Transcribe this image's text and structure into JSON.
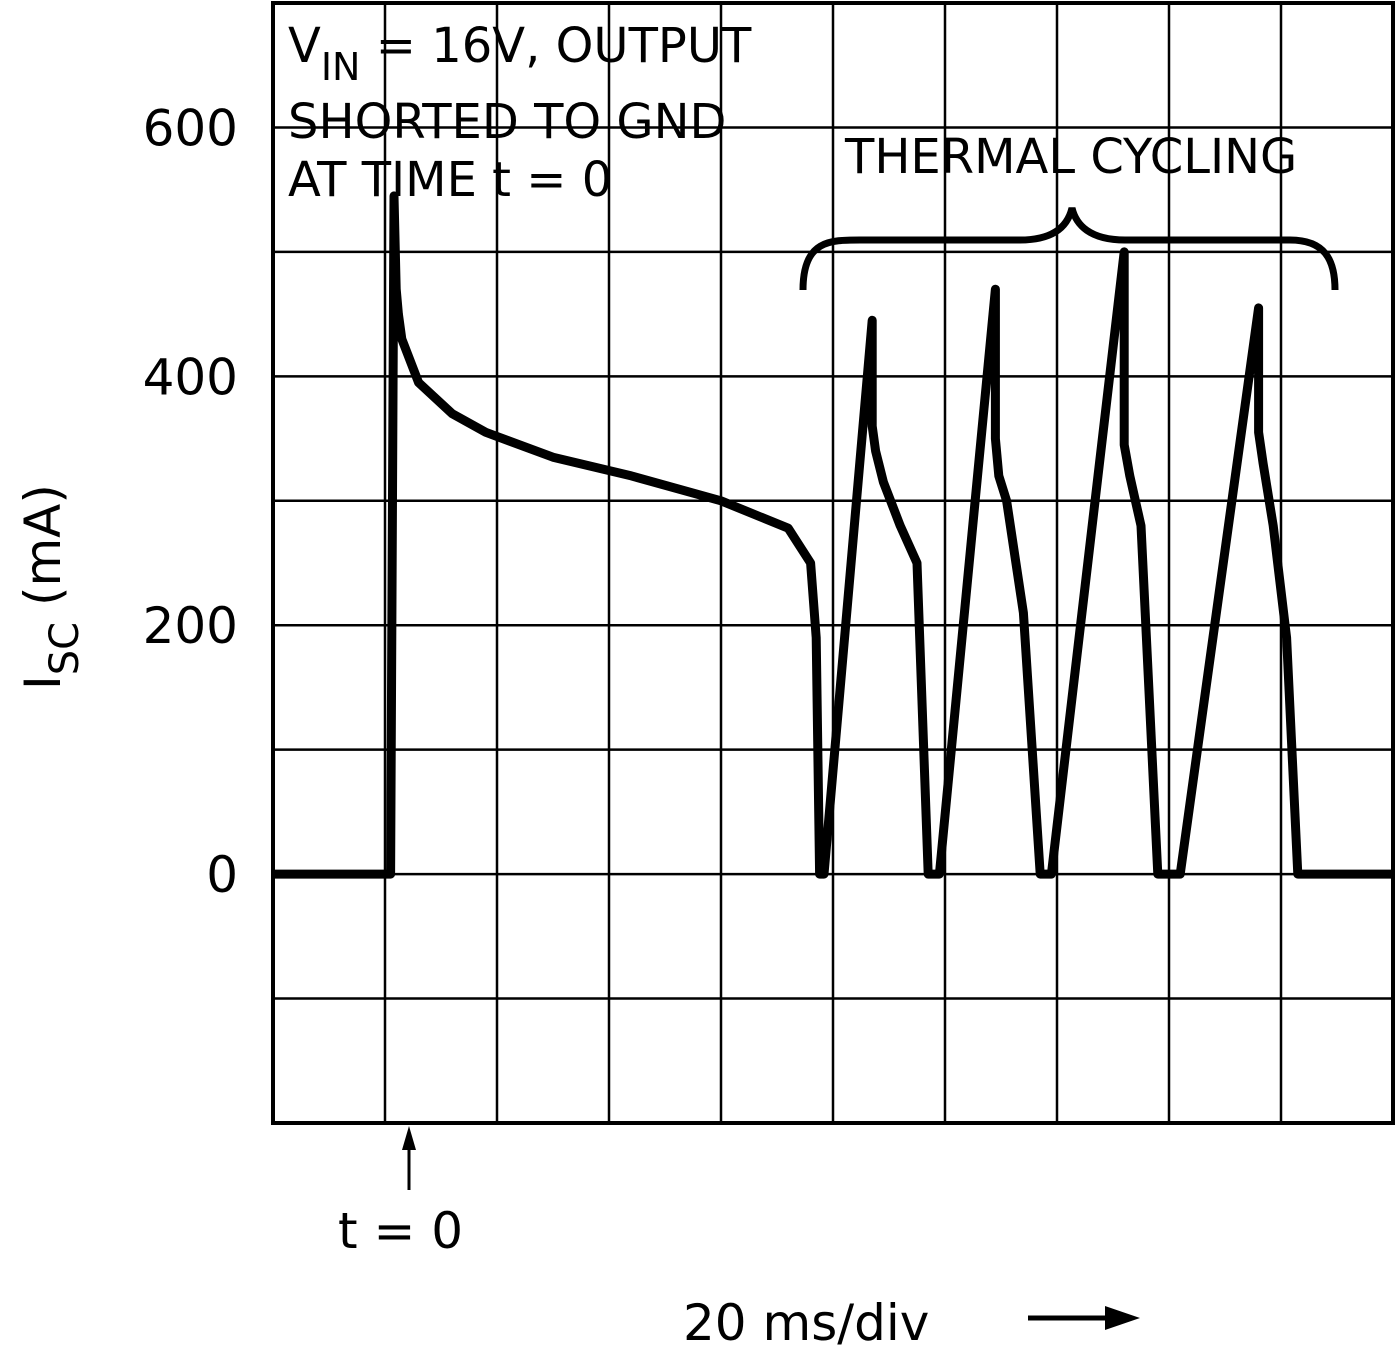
{
  "chart_data": {
    "type": "line",
    "annotation": {
      "line1_prefix": "V",
      "line1_sub": "IN",
      "line1_rest": " = 16V, OUTPUT",
      "line2": "SHORTED TO GND",
      "line3": "AT TIME t = 0"
    },
    "ylabel": {
      "main": "I",
      "sub": "SC",
      "unit": " (mA)"
    },
    "y_ticks": [
      "0",
      "200",
      "400",
      "600"
    ],
    "ylim": [
      -200,
      700
    ],
    "xlim_divisions": [
      0,
      10
    ],
    "x_unit_label": "20 ms/div",
    "t0_label": "t = 0",
    "thermal_cycling_label": "THERMAL CYCLING",
    "grid": true,
    "series": [
      {
        "x": [
          0,
          1.05,
          1.08,
          1.1,
          1.12,
          1.15,
          1.3,
          1.6,
          1.9,
          2.5,
          3.2,
          4.0,
          4.6,
          4.8,
          4.85,
          4.88,
          4.92,
          5.35,
          5.35,
          5.38,
          5.45,
          5.6,
          5.75,
          5.85,
          5.9,
          5.95,
          6.45,
          6.45,
          6.48,
          6.55,
          6.7,
          6.85,
          6.9,
          6.95,
          7.6,
          7.6,
          7.65,
          7.75,
          7.9,
          8.0,
          8.05,
          8.1,
          8.8,
          8.8,
          8.84,
          8.93,
          9.05,
          9.15,
          9.2,
          9.22,
          10.0
        ],
        "y": [
          0,
          0,
          545,
          470,
          450,
          430,
          395,
          370,
          355,
          335,
          320,
          300,
          278,
          250,
          190,
          0,
          0,
          445,
          360,
          340,
          315,
          280,
          250,
          0,
          0,
          0,
          470,
          350,
          320,
          300,
          210,
          0,
          0,
          0,
          500,
          345,
          320,
          280,
          0,
          0,
          0,
          0,
          455,
          355,
          330,
          280,
          190,
          0,
          0,
          0,
          0
        ]
      }
    ]
  }
}
